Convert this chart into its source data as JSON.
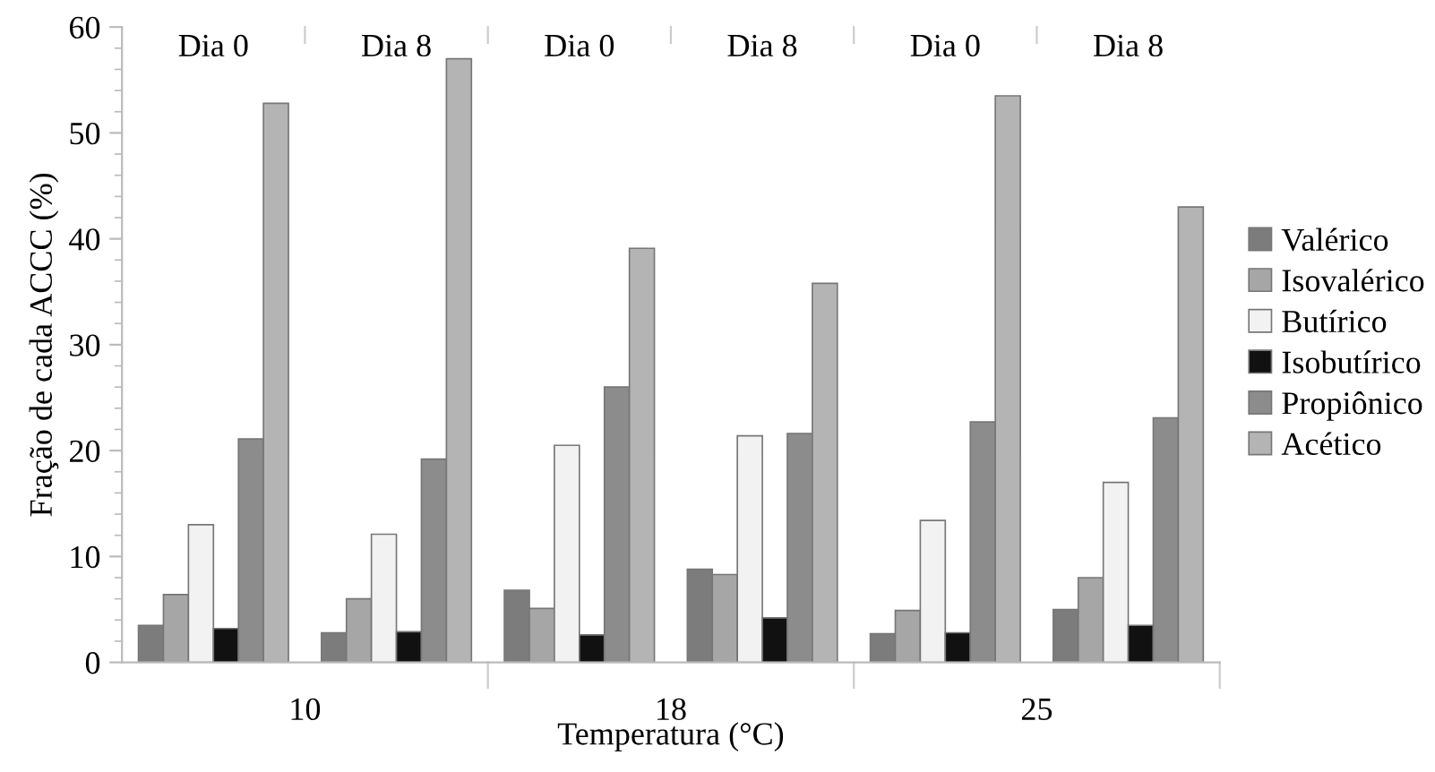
{
  "chart_data": {
    "type": "bar",
    "categories": [
      "Dia 0",
      "Dia 8",
      "Dia 0",
      "Dia 8",
      "Dia 0",
      "Dia 8"
    ],
    "series": [
      {
        "name": "Valérico",
        "color": "#7c7c7c",
        "values": [
          3.5,
          2.8,
          6.8,
          8.8,
          2.7,
          5.0
        ]
      },
      {
        "name": "Isovalérico",
        "color": "#a6a6a6",
        "values": [
          6.4,
          6.0,
          5.1,
          8.3,
          4.9,
          8.0
        ]
      },
      {
        "name": "Butírico",
        "color": "#f2f2f2",
        "values": [
          13.0,
          12.1,
          20.5,
          21.4,
          13.4,
          17.0
        ]
      },
      {
        "name": "Isobutírico",
        "color": "#111111",
        "values": [
          3.2,
          2.9,
          2.6,
          4.2,
          2.8,
          3.5
        ]
      },
      {
        "name": "Propiônico",
        "color": "#8c8c8c",
        "values": [
          21.1,
          19.2,
          26.0,
          21.6,
          22.7,
          23.1
        ]
      },
      {
        "name": "Acético",
        "color": "#b4b4b4",
        "values": [
          52.8,
          57.0,
          39.1,
          35.8,
          53.5,
          43.0
        ]
      }
    ],
    "ylabel": "Fração de cada ACCC (%)",
    "xlabel": "Temperatura (°C)",
    "annotations": [
      "10",
      "18",
      "25"
    ],
    "ylim": [
      0,
      60
    ],
    "yticks": [
      0,
      10,
      20,
      30,
      40,
      50,
      60
    ],
    "legend": "right",
    "grid": false
  }
}
